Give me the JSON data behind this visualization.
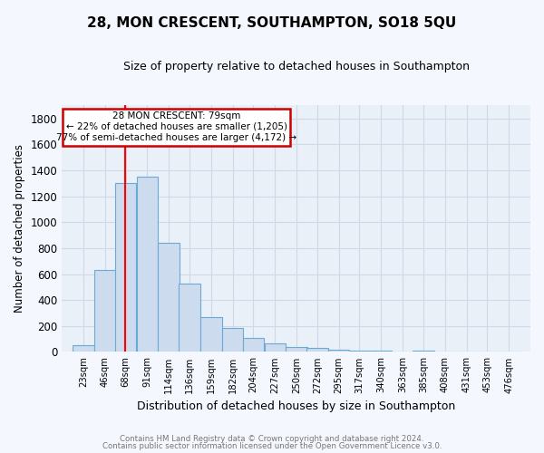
{
  "title": "28, MON CRESCENT, SOUTHAMPTON, SO18 5QU",
  "subtitle": "Size of property relative to detached houses in Southampton",
  "xlabel": "Distribution of detached houses by size in Southampton",
  "ylabel": "Number of detached properties",
  "bar_color": "#ccdcee",
  "bar_edge_color": "#6aaad4",
  "background_color": "#eaf0f8",
  "grid_color": "#d0d8e8",
  "fig_bg_color": "#f5f7ff",
  "redline_x": 79,
  "annotation_title": "28 MON CRESCENT: 79sqm",
  "annotation_line1": "← 22% of detached houses are smaller (1,205)",
  "annotation_line2": "77% of semi-detached houses are larger (4,172) →",
  "categories": [
    "23sqm",
    "46sqm",
    "68sqm",
    "91sqm",
    "114sqm",
    "136sqm",
    "159sqm",
    "182sqm",
    "204sqm",
    "227sqm",
    "250sqm",
    "272sqm",
    "295sqm",
    "317sqm",
    "340sqm",
    "363sqm",
    "385sqm",
    "408sqm",
    "431sqm",
    "453sqm",
    "476sqm"
  ],
  "bin_edges": [
    23,
    46,
    68,
    91,
    114,
    136,
    159,
    182,
    204,
    227,
    250,
    272,
    295,
    317,
    340,
    363,
    385,
    408,
    431,
    453,
    476
  ],
  "bin_width": 23,
  "values": [
    55,
    630,
    1305,
    1350,
    840,
    530,
    270,
    185,
    110,
    65,
    35,
    30,
    20,
    10,
    8,
    5,
    12,
    2,
    1,
    1,
    1
  ],
  "ylim": [
    0,
    1900
  ],
  "yticks": [
    0,
    200,
    400,
    600,
    800,
    1000,
    1200,
    1400,
    1600,
    1800
  ],
  "footer1": "Contains HM Land Registry data © Crown copyright and database right 2024.",
  "footer2": "Contains public sector information licensed under the Open Government Licence v3.0."
}
